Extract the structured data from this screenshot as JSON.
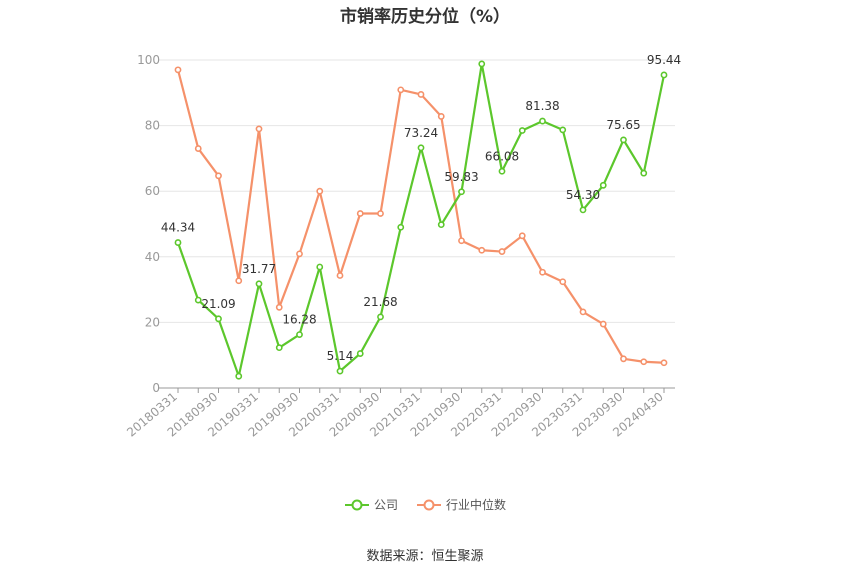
{
  "chart_data": {
    "type": "line",
    "title": "市销率历史分位（%）",
    "x_tick_labels": [
      "20180331",
      "20180930",
      "20190331",
      "20190930",
      "20200331",
      "20200930",
      "20210331",
      "20210930",
      "20220331",
      "20220930",
      "20230331",
      "20230930",
      "20240430"
    ],
    "x": [
      "20180331",
      "20180630",
      "20180930",
      "20181231",
      "20190331",
      "20190630",
      "20190930",
      "20191231",
      "20200331",
      "20200630",
      "20200930",
      "20201231",
      "20210331",
      "20210630",
      "20210930",
      "20211231",
      "20220331",
      "20220630",
      "20220930",
      "20221231",
      "20230331",
      "20230630",
      "20230930",
      "20231231",
      "20240430"
    ],
    "ylim": [
      0,
      100
    ],
    "yticks": [
      0,
      20,
      40,
      60,
      80,
      100
    ],
    "grid": true,
    "legend_position": "bottom",
    "series": [
      {
        "name": "公司",
        "color": "#5cc72c",
        "values": [
          44.34,
          26.8,
          21.09,
          3.6,
          31.77,
          12.3,
          16.28,
          36.9,
          5.14,
          10.5,
          21.68,
          49.0,
          73.24,
          49.8,
          59.83,
          98.8,
          66.08,
          78.5,
          81.38,
          78.7,
          54.3,
          61.8,
          75.65,
          65.5,
          95.44
        ],
        "labels": {
          "0": "44.34",
          "2": "21.09",
          "4": "31.77",
          "6": "16.28",
          "8": "5.14",
          "10": "21.68",
          "12": "73.24",
          "14": "59.83",
          "16": "66.08",
          "18": "81.38",
          "20": "54.30",
          "22": "75.65",
          "24": "95.44"
        }
      },
      {
        "name": "行业中位数",
        "color": "#f5916a",
        "values": [
          97.0,
          73.0,
          64.7,
          32.7,
          79.0,
          24.6,
          40.9,
          60.0,
          34.3,
          53.2,
          53.2,
          90.9,
          89.5,
          82.8,
          44.9,
          42.0,
          41.6,
          46.4,
          35.3,
          32.4,
          23.2,
          19.5,
          8.9,
          8.0,
          7.7
        ]
      }
    ]
  },
  "source": "数据来源：恒生聚源"
}
